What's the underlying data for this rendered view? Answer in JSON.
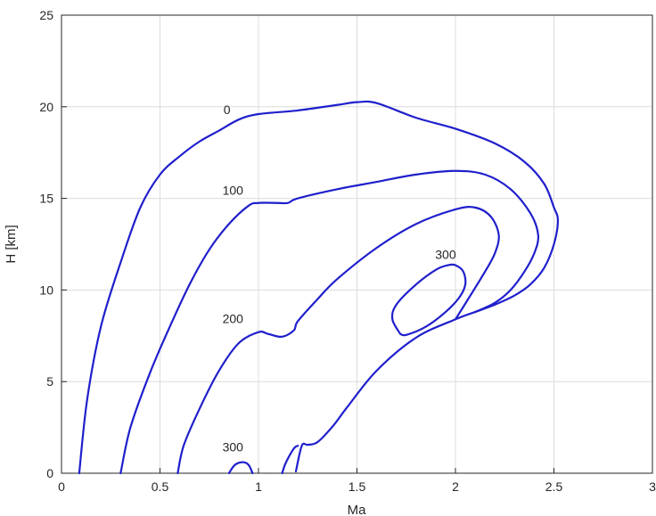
{
  "chart_data": {
    "type": "line",
    "subtype": "contour",
    "title": "",
    "xlabel": "Ma",
    "ylabel": "H [km]",
    "xlim": [
      0,
      3
    ],
    "ylim": [
      0,
      25
    ],
    "xticks": [
      0,
      0.5,
      1,
      1.5,
      2,
      2.5,
      3
    ],
    "xtick_labels": [
      "0",
      "0.5",
      "1",
      "1.5",
      "2",
      "2.5",
      "3"
    ],
    "yticks": [
      0,
      5,
      10,
      15,
      20,
      25
    ],
    "ytick_labels": [
      "0",
      "5",
      "10",
      "15",
      "20",
      "25"
    ],
    "grid": true,
    "line_color": "#1f1fcc",
    "contours": [
      {
        "level": "0",
        "x": [
          0.09,
          0.13,
          0.2,
          0.3,
          0.4,
          0.5,
          0.6,
          0.7,
          0.8,
          0.9,
          1.0,
          1.2,
          1.4,
          1.5,
          1.6,
          1.8,
          2.0,
          2.2,
          2.35,
          2.45,
          2.5,
          2.52,
          2.5,
          2.45,
          2.38,
          2.3,
          2.2,
          2.1,
          2.0,
          1.8,
          1.6,
          1.45,
          1.38,
          1.3,
          1.25,
          1.22,
          1.19
        ],
        "y": [
          0,
          4,
          8,
          11.5,
          14.5,
          16.3,
          17.3,
          18.1,
          18.7,
          19.3,
          19.6,
          19.8,
          20.1,
          20.25,
          20.2,
          19.4,
          18.8,
          18.0,
          17.0,
          15.8,
          14.5,
          13.8,
          12.5,
          11.2,
          10.3,
          9.7,
          9.2,
          8.8,
          8.4,
          7.4,
          5.6,
          3.6,
          2.6,
          1.7,
          1.55,
          1.5,
          0.1
        ]
      },
      {
        "level": "100",
        "x": [
          0.3,
          0.35,
          0.45,
          0.55,
          0.65,
          0.75,
          0.85,
          0.95,
          1.0,
          1.1,
          1.15,
          1.2,
          1.4,
          1.6,
          1.8,
          2.0,
          2.15,
          2.28,
          2.38,
          2.42,
          2.4,
          2.35,
          2.28,
          2.2,
          2.1
        ],
        "y": [
          0,
          2.5,
          5.5,
          8.0,
          10.3,
          12.2,
          13.6,
          14.6,
          14.75,
          14.75,
          14.75,
          15.0,
          15.5,
          15.9,
          16.3,
          16.5,
          16.3,
          15.5,
          14.2,
          13.0,
          12.0,
          11.0,
          10.0,
          9.3,
          8.8
        ]
      },
      {
        "level": "200",
        "x": [
          0.59,
          0.62,
          0.7,
          0.8,
          0.9,
          1.0,
          1.05,
          1.12,
          1.18,
          1.2,
          1.3,
          1.4,
          1.6,
          1.8,
          2.0,
          2.1,
          2.18,
          2.22,
          2.2,
          2.15,
          2.07,
          2.0
        ],
        "y": [
          0,
          1.5,
          3.5,
          5.6,
          7.1,
          7.7,
          7.6,
          7.45,
          7.8,
          8.3,
          9.5,
          10.6,
          12.3,
          13.6,
          14.4,
          14.5,
          14.0,
          13.0,
          12.0,
          11.0,
          9.6,
          8.4
        ]
      },
      {
        "level": "300",
        "x": [
          1.72,
          1.68,
          1.7,
          1.8,
          1.9,
          1.96,
          2.0,
          2.04,
          2.05,
          2.02,
          1.95,
          1.85,
          1.75,
          1.72
        ],
        "y": [
          7.6,
          8.4,
          9.2,
          10.3,
          11.1,
          11.35,
          11.35,
          11.0,
          10.3,
          9.6,
          8.8,
          8.0,
          7.55,
          7.6
        ]
      },
      {
        "level": "300",
        "x": [
          0.85,
          0.88,
          0.92,
          0.95,
          0.97
        ],
        "y": [
          0,
          0.45,
          0.6,
          0.45,
          0
        ]
      },
      {
        "level": "",
        "x": [
          1.12,
          1.14,
          1.18,
          1.2
        ],
        "y": [
          0,
          0.6,
          1.35,
          1.5
        ]
      }
    ],
    "labels": [
      {
        "text": "0",
        "x": 0.84,
        "y": 19.6
      },
      {
        "text": "100",
        "x": 0.87,
        "y": 15.2
      },
      {
        "text": "200",
        "x": 0.87,
        "y": 8.2
      },
      {
        "text": "300",
        "x": 1.95,
        "y": 11.7
      },
      {
        "text": "300",
        "x": 0.87,
        "y": 1.2
      }
    ]
  }
}
